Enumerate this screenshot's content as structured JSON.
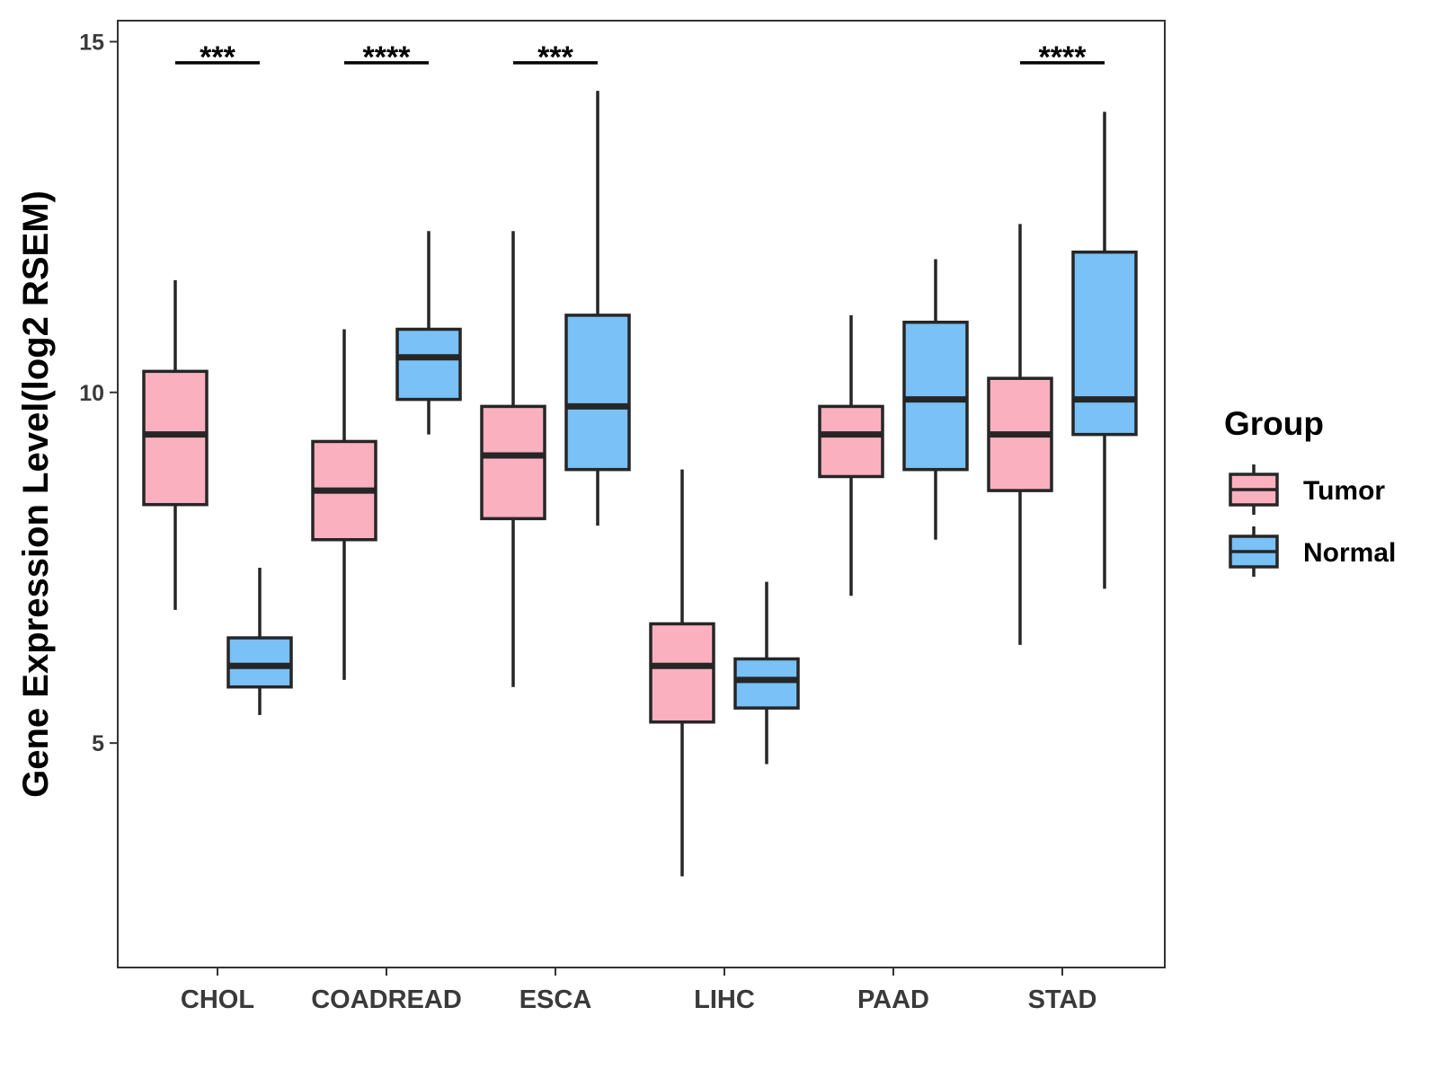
{
  "chart_data": {
    "type": "box",
    "title": "",
    "xlabel": "",
    "ylabel": "Gene Expression Level(log2 RSEM)",
    "ylim": [
      1.8,
      15.3
    ],
    "yticks": [
      5,
      10,
      15
    ],
    "grid": false,
    "legend": {
      "title": "Group",
      "position": "right",
      "items": [
        {
          "name": "Tumor",
          "color": "#fbb0c0"
        },
        {
          "name": "Normal",
          "color": "#79c1f7"
        }
      ]
    },
    "categories": [
      "CHOL",
      "COADREAD",
      "ESCA",
      "LIHC",
      "PAAD",
      "STAD"
    ],
    "series": [
      {
        "name": "Tumor",
        "color": "#fbb0c0",
        "boxes": [
          {
            "min": 6.9,
            "q1": 8.4,
            "median": 9.4,
            "q3": 10.3,
            "max": 11.6
          },
          {
            "min": 5.9,
            "q1": 7.9,
            "median": 8.6,
            "q3": 9.3,
            "max": 10.9
          },
          {
            "min": 5.8,
            "q1": 8.2,
            "median": 9.1,
            "q3": 9.8,
            "max": 12.3
          },
          {
            "min": 3.1,
            "q1": 5.3,
            "median": 6.1,
            "q3": 6.7,
            "max": 8.9
          },
          {
            "min": 7.1,
            "q1": 8.8,
            "median": 9.4,
            "q3": 9.8,
            "max": 11.1
          },
          {
            "min": 6.4,
            "q1": 8.6,
            "median": 9.4,
            "q3": 10.2,
            "max": 12.4
          }
        ]
      },
      {
        "name": "Normal",
        "color": "#79c1f7",
        "boxes": [
          {
            "min": 5.4,
            "q1": 5.8,
            "median": 6.1,
            "q3": 6.5,
            "max": 7.5
          },
          {
            "min": 9.4,
            "q1": 9.9,
            "median": 10.5,
            "q3": 10.9,
            "max": 12.3
          },
          {
            "min": 8.1,
            "q1": 8.9,
            "median": 9.8,
            "q3": 11.1,
            "max": 14.3
          },
          {
            "min": 4.7,
            "q1": 5.5,
            "median": 5.9,
            "q3": 6.2,
            "max": 7.3
          },
          {
            "min": 7.9,
            "q1": 8.9,
            "median": 9.9,
            "q3": 11.0,
            "max": 11.9
          },
          {
            "min": 7.2,
            "q1": 9.4,
            "median": 9.9,
            "q3": 12.0,
            "max": 14.0
          }
        ]
      }
    ],
    "significance": [
      {
        "category": "CHOL",
        "label": "***",
        "y": 14.7
      },
      {
        "category": "COADREAD",
        "label": "****",
        "y": 14.7
      },
      {
        "category": "ESCA",
        "label": "***",
        "y": 14.7
      },
      {
        "category": "STAD",
        "label": "****",
        "y": 14.7
      }
    ]
  }
}
